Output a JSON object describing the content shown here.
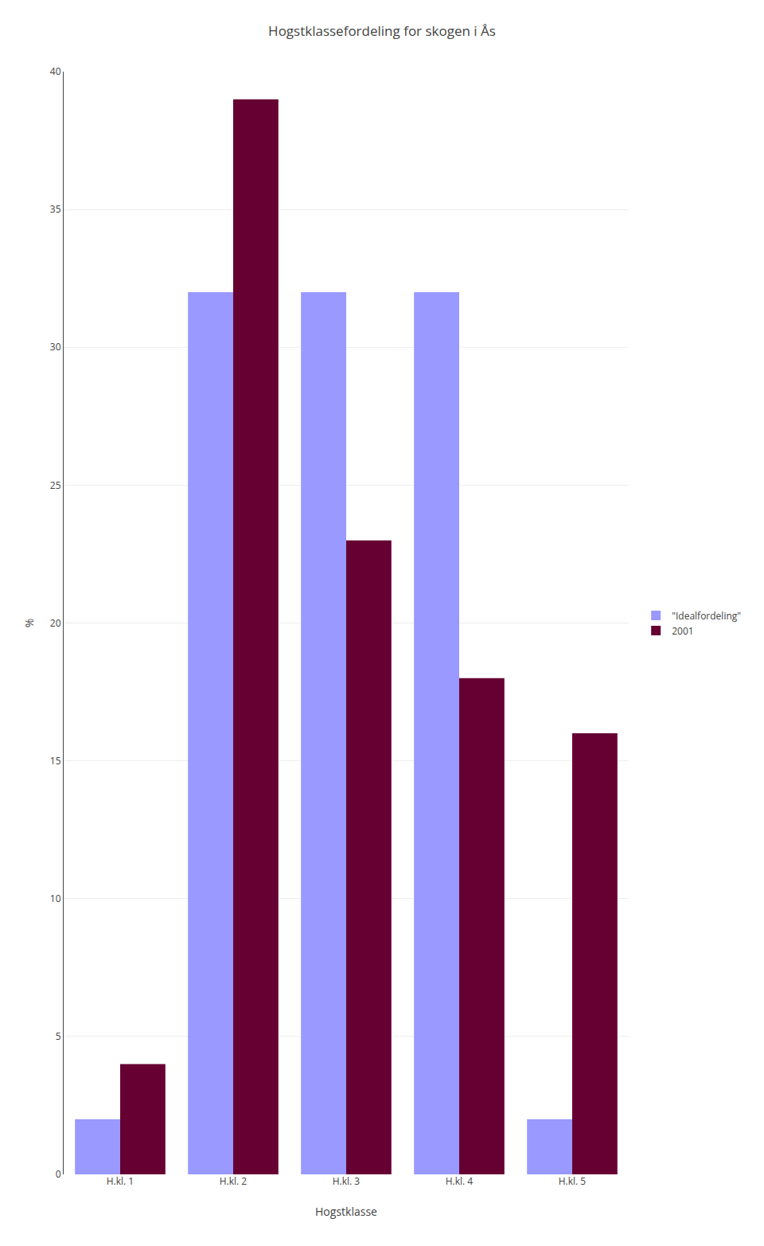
{
  "chart_data": {
    "type": "bar",
    "title": "Hogstklassefordeling for skogen i Ås",
    "xlabel": "Hogstklasse",
    "ylabel": "%",
    "categories": [
      "H.kl. 1",
      "H.kl. 2",
      "H.kl. 3",
      "H.kl. 4",
      "H.kl. 5"
    ],
    "series": [
      {
        "name": "\"Idealfordeling\"",
        "color": "#9999FF",
        "values": [
          2,
          32,
          32,
          32,
          2
        ]
      },
      {
        "name": "2001",
        "color": "#660033",
        "values": [
          4,
          39,
          23,
          18,
          16
        ]
      }
    ],
    "ylim": [
      0,
      40
    ],
    "yticks": [
      0,
      5,
      10,
      15,
      20,
      25,
      30,
      35,
      40
    ],
    "grid": true,
    "legend": "right"
  }
}
